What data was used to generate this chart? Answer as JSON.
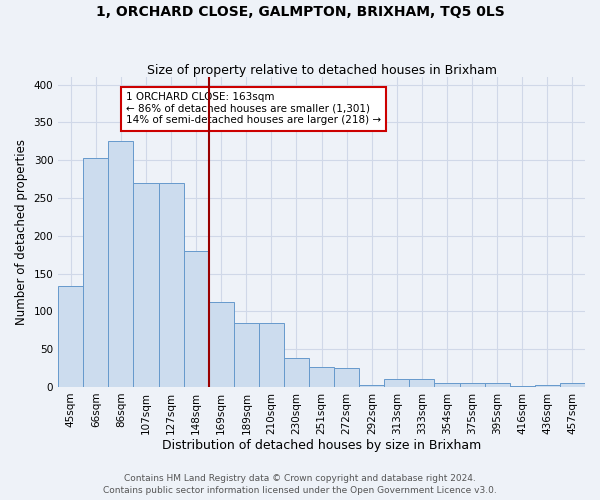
{
  "title": "1, ORCHARD CLOSE, GALMPTON, BRIXHAM, TQ5 0LS",
  "subtitle": "Size of property relative to detached houses in Brixham",
  "xlabel": "Distribution of detached houses by size in Brixham",
  "ylabel": "Number of detached properties",
  "categories": [
    "45sqm",
    "66sqm",
    "86sqm",
    "107sqm",
    "127sqm",
    "148sqm",
    "169sqm",
    "189sqm",
    "210sqm",
    "230sqm",
    "251sqm",
    "272sqm",
    "292sqm",
    "313sqm",
    "333sqm",
    "354sqm",
    "375sqm",
    "395sqm",
    "416sqm",
    "436sqm",
    "457sqm"
  ],
  "values": [
    134,
    303,
    325,
    270,
    270,
    180,
    113,
    85,
    85,
    38,
    27,
    25,
    3,
    11,
    11,
    5,
    5,
    5,
    1,
    3,
    5
  ],
  "bar_color": "#ccdcee",
  "bar_edge_color": "#6699cc",
  "vline_color": "#990000",
  "annotation_text": "1 ORCHARD CLOSE: 163sqm\n← 86% of detached houses are smaller (1,301)\n14% of semi-detached houses are larger (218) →",
  "annotation_box_color": "#ffffff",
  "annotation_box_edge": "#cc0000",
  "footer_line1": "Contains HM Land Registry data © Crown copyright and database right 2024.",
  "footer_line2": "Contains public sector information licensed under the Open Government Licence v3.0.",
  "bg_color": "#eef2f8",
  "grid_color": "#d0d8e8",
  "ylim": [
    0,
    410
  ],
  "yticks": [
    0,
    50,
    100,
    150,
    200,
    250,
    300,
    350,
    400
  ],
  "title_fontsize": 10,
  "subtitle_fontsize": 9,
  "xlabel_fontsize": 9,
  "ylabel_fontsize": 8.5,
  "tick_fontsize": 7.5,
  "footer_fontsize": 6.5
}
